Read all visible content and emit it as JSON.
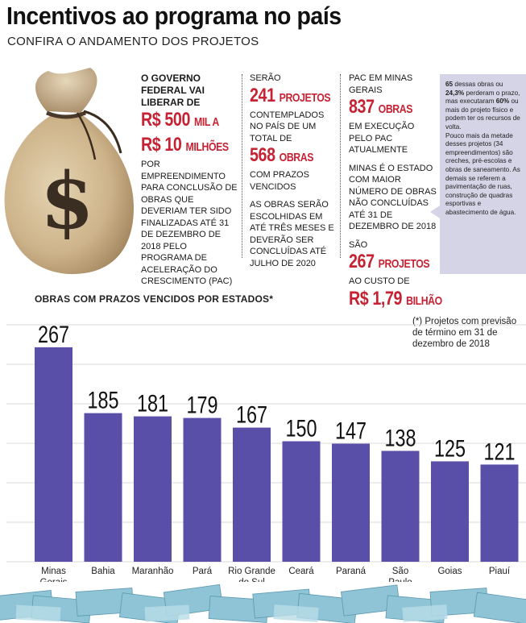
{
  "header": {
    "title": "Incentivos ao programa no país",
    "subtitle": "CONFIRA O ANDAMENTO DOS PROJETOS"
  },
  "col1": {
    "lead": "O GOVERNO FEDERAL VAI LIBERAR DE",
    "amount1_num": "R$ 500",
    "amount1_unit": "MIL A",
    "amount2_num": "R$ 10",
    "amount2_unit": "MILHÕES",
    "body": "POR EMPREENDIMENTO PARA CONCLUSÃO DE OBRAS QUE DEVERIAM TER SIDO FINALIZADAS ATÉ 31 DE DEZEMBRO DE 2018 PELO PROGRAMA DE ACELERAÇÃO DO CRESCIMENTO (PAC)"
  },
  "col2": {
    "lead": "SERÃO",
    "projects_num": "241",
    "projects_unit": "PROJETOS",
    "mid": "CONTEMPLADOS NO PAÍS DE UM TOTAL DE",
    "works_num": "568",
    "works_unit": "OBRAS",
    "after": "COM PRAZOS VENCIDOS",
    "body": "AS OBRAS SERÃO ESCOLHIDAS EM ATÉ TRÊS MESES E DEVERÃO SER CONCLUÍDAS ATÉ JULHO DE 2020"
  },
  "col3": {
    "lead": "PAC EM MINAS GERAIS",
    "works_num": "837",
    "works_unit": "OBRAS",
    "after": "EM EXECUÇÃO PELO PAC ATUALMENTE",
    "body": "MINAS É O ESTADO COM MAIOR NÚMERO DE OBRAS NÃO CONCLUÍDAS ATÉ 31 DE DEZEMBRO DE 2018",
    "lead2": "SÃO",
    "projects_num": "267",
    "projects_unit": "PROJETOS",
    "cost_lead": "AO CUSTO DE",
    "cost_num": "R$ 1,79",
    "cost_unit": "BILHÃO"
  },
  "note": {
    "p1_a": "65",
    "p1_b": " dessas obras ou ",
    "p1_c": "24,3%",
    "p1_d": " perderam o prazo, mas executaram ",
    "p1_e": "60%",
    "p1_f": " ou mais do projeto físico e podem ter os recursos de volta.",
    "p2": "Pouco mais da metade desses projetos (34 empreendimentos) são creches, pré-escolas e obras de saneamento. As demais se referem a pavimentação de ruas, construção de quadras esportivas e abastecimento de água."
  },
  "chart_data": {
    "type": "bar",
    "title": "OBRAS COM PRAZOS VENCIDOS POR ESTADOS*",
    "footnote": "(*) Projetos com previsão de término em 31 de dezembro de 2018",
    "categories": [
      "Minas Gerais",
      "Bahia",
      "Maranhão",
      "Pará",
      "Rio Grande do Sul",
      "Ceará",
      "Paraná",
      "São Paulo",
      "Goias",
      "Piauí"
    ],
    "category_lines": [
      [
        "Minas",
        "Gerais"
      ],
      [
        "Bahia"
      ],
      [
        "Maranhão"
      ],
      [
        "Pará"
      ],
      [
        "Rio Grande",
        "do Sul"
      ],
      [
        "Ceará"
      ],
      [
        "Paraná"
      ],
      [
        "São",
        "Paulo"
      ],
      [
        "Goias"
      ],
      [
        "Piauí"
      ]
    ],
    "values": [
      267,
      185,
      181,
      179,
      167,
      150,
      147,
      138,
      125,
      121
    ],
    "ylim": [
      0,
      300
    ],
    "grid": true,
    "bar_color": "#5a4fa8"
  }
}
